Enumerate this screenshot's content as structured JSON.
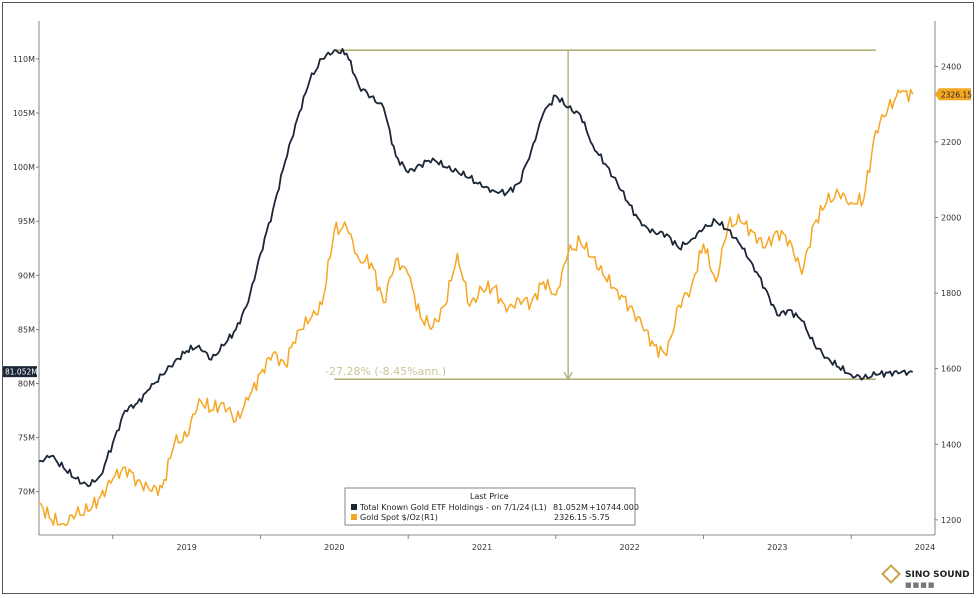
{
  "chart_data": {
    "type": "line",
    "xlabel": "",
    "x_ticks": [
      "2019",
      "2020",
      "2021",
      "2022",
      "2023",
      "2024"
    ],
    "left_axis": {
      "ticks": [
        "70M",
        "75M",
        "80M",
        "85M",
        "90M",
        "95M",
        "100M",
        "105M",
        "110M"
      ],
      "ylim": [
        66,
        113.5
      ]
    },
    "right_axis": {
      "ticks": [
        "1200",
        "1400",
        "1600",
        "1800",
        "2000",
        "2200",
        "2400"
      ],
      "ylim": [
        1160,
        2520
      ]
    },
    "series": [
      {
        "name": "Total Known Gold ETF Holdings -  on 7/1/24",
        "axis": "left",
        "color": "#1b2636",
        "points": [
          [
            "2018-07",
            72.8
          ],
          [
            "2018-08",
            73.3
          ],
          [
            "2018-09",
            72.2
          ],
          [
            "2018-10",
            71.2
          ],
          [
            "2018-11",
            70.5
          ],
          [
            "2018-12",
            71.5
          ],
          [
            "2019-01",
            74.5
          ],
          [
            "2019-02",
            77.5
          ],
          [
            "2019-03",
            78.2
          ],
          [
            "2019-04",
            79.5
          ],
          [
            "2019-05",
            80.8
          ],
          [
            "2019-06",
            82.0
          ],
          [
            "2019-07",
            83.0
          ],
          [
            "2019-08",
            83.5
          ],
          [
            "2019-09",
            82.2
          ],
          [
            "2019-10",
            83.5
          ],
          [
            "2019-11",
            85.0
          ],
          [
            "2019-12",
            87.5
          ],
          [
            "2020-01",
            92.0
          ],
          [
            "2020-02",
            96.0
          ],
          [
            "2020-03",
            100.5
          ],
          [
            "2020-04",
            104.5
          ],
          [
            "2020-05",
            108.0
          ],
          [
            "2020-06",
            110.0
          ],
          [
            "2020-07",
            110.8
          ],
          [
            "2020-08",
            110.5
          ],
          [
            "2020-09",
            107.5
          ],
          [
            "2020-10",
            106.5
          ],
          [
            "2020-11",
            105.5
          ],
          [
            "2020-12",
            101.0
          ],
          [
            "2021-01",
            99.5
          ],
          [
            "2021-02",
            100.2
          ],
          [
            "2021-03",
            100.8
          ],
          [
            "2021-04",
            100.0
          ],
          [
            "2021-05",
            99.6
          ],
          [
            "2021-06",
            99.0
          ],
          [
            "2021-07",
            98.2
          ],
          [
            "2021-08",
            97.8
          ],
          [
            "2021-09",
            97.6
          ],
          [
            "2021-10",
            98.5
          ],
          [
            "2021-11",
            101.5
          ],
          [
            "2021-12",
            105.0
          ],
          [
            "2022-01",
            106.6
          ],
          [
            "2022-02",
            105.5
          ],
          [
            "2022-03",
            104.8
          ],
          [
            "2022-04",
            102.0
          ],
          [
            "2022-05",
            100.3
          ],
          [
            "2022-06",
            98.5
          ],
          [
            "2022-07",
            96.5
          ],
          [
            "2022-08",
            94.6
          ],
          [
            "2022-09",
            94.0
          ],
          [
            "2022-10",
            93.8
          ],
          [
            "2022-11",
            92.5
          ],
          [
            "2022-12",
            93.3
          ],
          [
            "2023-01",
            94.3
          ],
          [
            "2023-02",
            95.0
          ],
          [
            "2023-03",
            94.2
          ],
          [
            "2023-04",
            92.8
          ],
          [
            "2023-05",
            91.0
          ],
          [
            "2023-06",
            88.8
          ],
          [
            "2023-07",
            86.3
          ],
          [
            "2023-08",
            86.8
          ],
          [
            "2023-09",
            85.8
          ],
          [
            "2023-10",
            83.6
          ],
          [
            "2023-11",
            82.4
          ],
          [
            "2023-12",
            81.5
          ],
          [
            "2024-01",
            80.8
          ],
          [
            "2024-02",
            80.5
          ],
          [
            "2024-03",
            80.8
          ],
          [
            "2024-04",
            81.0
          ],
          [
            "2024-05",
            81.0
          ],
          [
            "2024-06",
            81.05
          ]
        ]
      },
      {
        "name": "Gold Spot $/Oz",
        "axis": "right",
        "color": "#f5a623",
        "points": [
          [
            "2018-07",
            1245
          ],
          [
            "2018-08",
            1200
          ],
          [
            "2018-09",
            1190
          ],
          [
            "2018-10",
            1215
          ],
          [
            "2018-11",
            1222
          ],
          [
            "2018-12",
            1262
          ],
          [
            "2019-01",
            1308
          ],
          [
            "2019-02",
            1340
          ],
          [
            "2019-03",
            1305
          ],
          [
            "2019-04",
            1278
          ],
          [
            "2019-05",
            1285
          ],
          [
            "2019-06",
            1402
          ],
          [
            "2019-07",
            1420
          ],
          [
            "2019-08",
            1520
          ],
          [
            "2019-09",
            1490
          ],
          [
            "2019-10",
            1510
          ],
          [
            "2019-11",
            1462
          ],
          [
            "2019-12",
            1517
          ],
          [
            "2020-01",
            1588
          ],
          [
            "2020-02",
            1640
          ],
          [
            "2020-03",
            1610
          ],
          [
            "2020-04",
            1700
          ],
          [
            "2020-05",
            1728
          ],
          [
            "2020-06",
            1770
          ],
          [
            "2020-07",
            1965
          ],
          [
            "2020-08",
            1975
          ],
          [
            "2020-09",
            1890
          ],
          [
            "2020-10",
            1880
          ],
          [
            "2020-11",
            1775
          ],
          [
            "2020-12",
            1890
          ],
          [
            "2021-01",
            1850
          ],
          [
            "2021-02",
            1735
          ],
          [
            "2021-03",
            1710
          ],
          [
            "2021-04",
            1768
          ],
          [
            "2021-05",
            1905
          ],
          [
            "2021-06",
            1765
          ],
          [
            "2021-07",
            1810
          ],
          [
            "2021-08",
            1815
          ],
          [
            "2021-09",
            1750
          ],
          [
            "2021-10",
            1785
          ],
          [
            "2021-11",
            1775
          ],
          [
            "2021-12",
            1830
          ],
          [
            "2022-01",
            1795
          ],
          [
            "2022-02",
            1905
          ],
          [
            "2022-03",
            1935
          ],
          [
            "2022-04",
            1895
          ],
          [
            "2022-05",
            1840
          ],
          [
            "2022-06",
            1808
          ],
          [
            "2022-07",
            1765
          ],
          [
            "2022-08",
            1715
          ],
          [
            "2022-09",
            1660
          ],
          [
            "2022-10",
            1635
          ],
          [
            "2022-11",
            1768
          ],
          [
            "2022-12",
            1815
          ],
          [
            "2023-01",
            1930
          ],
          [
            "2023-02",
            1830
          ],
          [
            "2023-03",
            1980
          ],
          [
            "2023-04",
            1990
          ],
          [
            "2023-05",
            1962
          ],
          [
            "2023-06",
            1920
          ],
          [
            "2023-07",
            1965
          ],
          [
            "2023-08",
            1940
          ],
          [
            "2023-09",
            1850
          ],
          [
            "2023-10",
            1985
          ],
          [
            "2023-11",
            2040
          ],
          [
            "2023-12",
            2063
          ],
          [
            "2024-01",
            2040
          ],
          [
            "2024-02",
            2045
          ],
          [
            "2024-03",
            2230
          ],
          [
            "2024-04",
            2290
          ],
          [
            "2024-05",
            2330
          ],
          [
            "2024-06",
            2326.15
          ]
        ]
      }
    ],
    "annotations": {
      "drawdown_label": "-27.28% (-8.45%ann.)",
      "left_badge": "81.052M",
      "right_badge": "2326.15"
    },
    "legend": {
      "title": "Last Price",
      "placement": "bottom-center",
      "entries": [
        {
          "name": "Total Known Gold ETF Holdings -  on 7/1/24",
          "axis": "(L1)",
          "value": "81.052M",
          "change": "+10744.000",
          "color": "#1b2636"
        },
        {
          "name": "Gold Spot $/Oz",
          "axis": "(R1)",
          "value": "2326.15",
          "change": "-5.75",
          "color": "#f5a623"
        }
      ]
    }
  },
  "logo": {
    "text": "SINO SOUND"
  }
}
